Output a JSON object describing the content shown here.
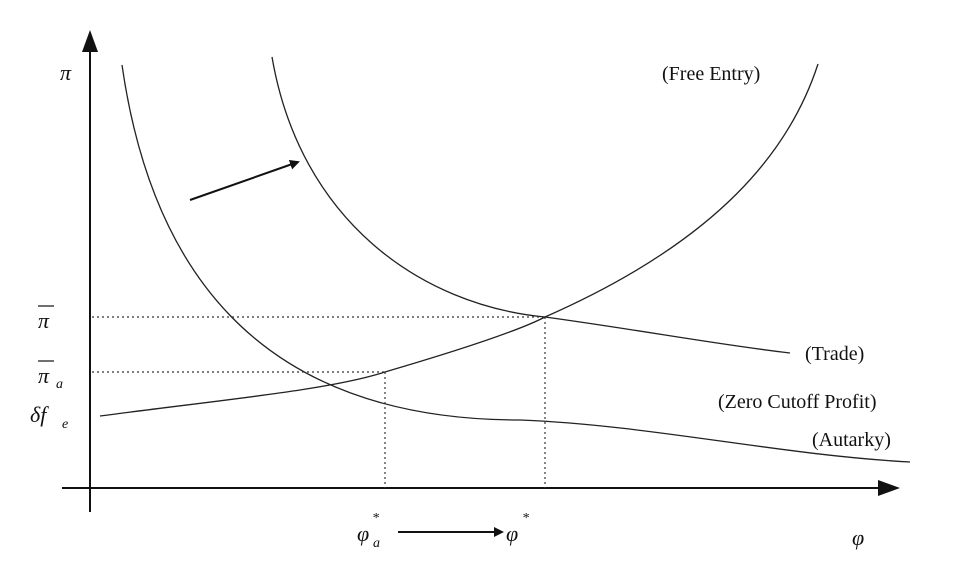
{
  "axes": {
    "y_symbol": "π",
    "x_symbol": "φ"
  },
  "y_ticks": {
    "pi_bar": "π",
    "pi_bar_a_base": "π",
    "pi_bar_a_sub": "a",
    "delta_fe_base": "δf",
    "delta_fe_sub": "e"
  },
  "x_ticks": {
    "phi_a_base": "φ",
    "phi_a_sub": "a",
    "phi_a_sup": "*",
    "phi_base": "φ",
    "phi_sup": "*"
  },
  "curve_labels": {
    "free_entry": "(Free Entry)",
    "trade": "(Trade)",
    "zero_cutoff": "(Zero Cutoff Profit)",
    "autarky": "(Autarky)"
  }
}
